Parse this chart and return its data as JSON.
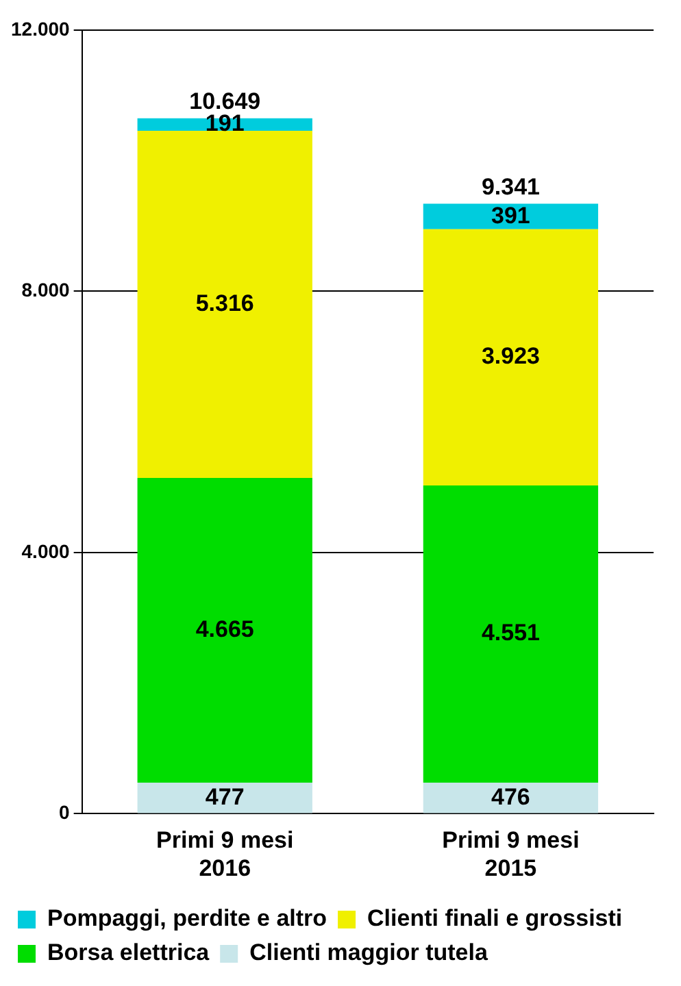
{
  "chart_data": {
    "type": "bar",
    "stacked": true,
    "categories": [
      "Primi 9 mesi 2016",
      "Primi 9 mesi 2015"
    ],
    "series": [
      {
        "name": "Clienti maggior tutela",
        "color": "#c8e6ea",
        "values": [
          477,
          476
        ],
        "value_labels": [
          "477",
          "476"
        ]
      },
      {
        "name": "Borsa elettrica",
        "color": "#00dd00",
        "values": [
          4665,
          4551
        ],
        "value_labels": [
          "4.665",
          "4.551"
        ]
      },
      {
        "name": "Clienti finali e grossisti",
        "color": "#f0f000",
        "values": [
          5316,
          3923
        ],
        "value_labels": [
          "5.316",
          "3.923"
        ]
      },
      {
        "name": "Pompaggi, perdite e altro",
        "color": "#00ccdd",
        "values": [
          191,
          391
        ],
        "value_labels": [
          "191",
          "391"
        ]
      }
    ],
    "totals": [
      "10.649",
      "9.341"
    ],
    "ylim": [
      0,
      12000
    ],
    "yticks": [
      {
        "value": 0,
        "label": "0"
      },
      {
        "value": 4000,
        "label": "4.000"
      },
      {
        "value": 8000,
        "label": "8.000"
      },
      {
        "value": 12000,
        "label": "12.000"
      }
    ],
    "grid": "y",
    "legend": "bottom"
  }
}
